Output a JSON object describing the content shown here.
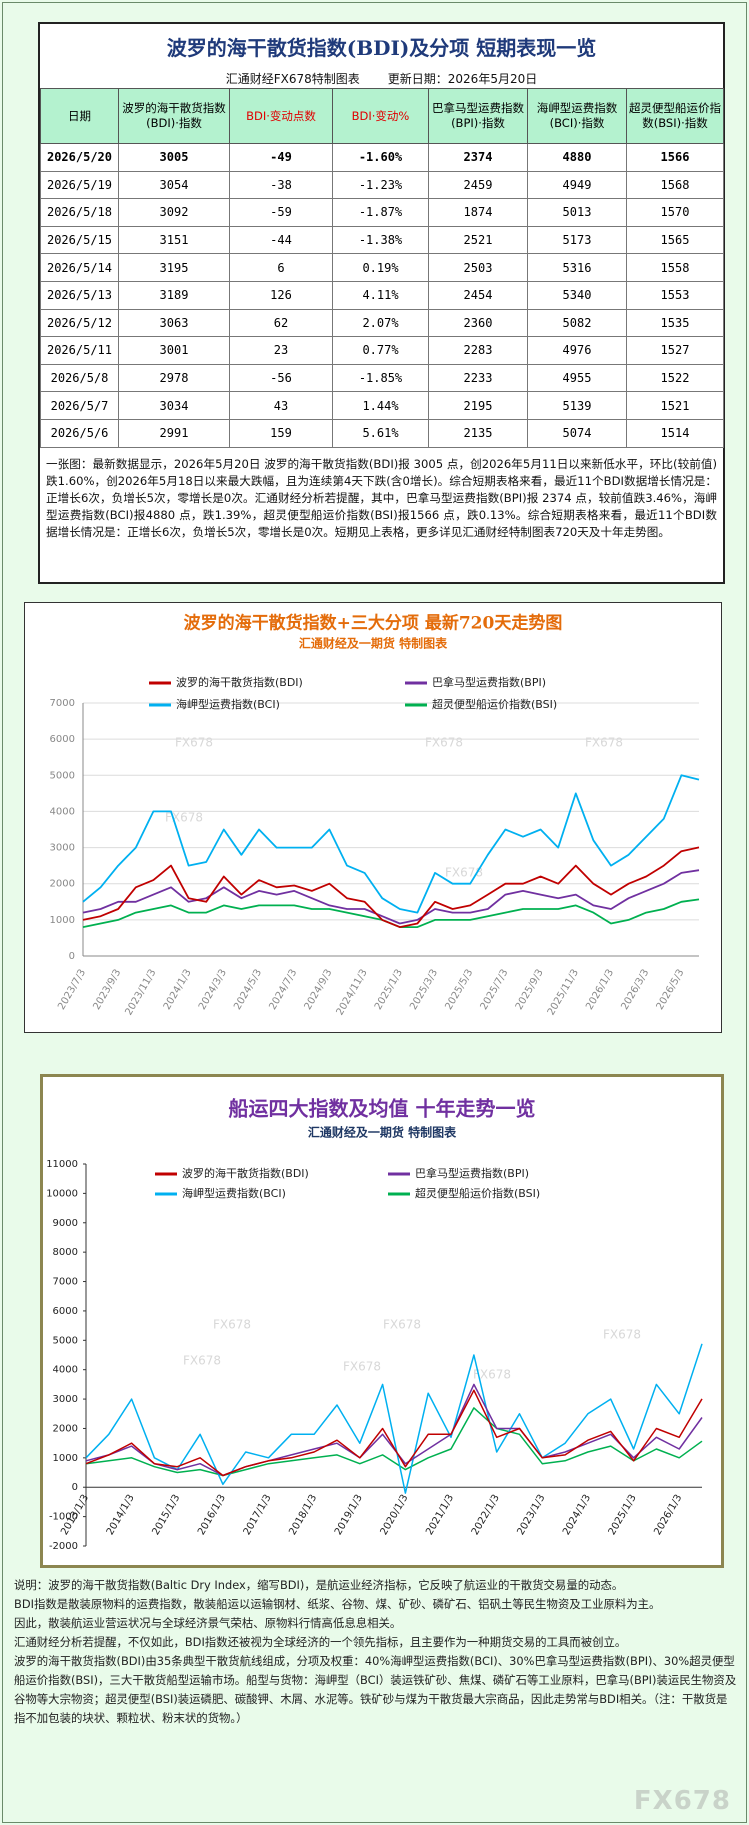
{
  "header": {
    "title": "波罗的海干散货指数(BDI)及分项  短期表现一览",
    "source": "汇通财经FX678特制图表",
    "date": "更新日期：2026年5月20日"
  },
  "table": {
    "columns": [
      "日期",
      "波罗的海干散货指数(BDI)·指数",
      "BDI·变动点数",
      "BDI·变动%",
      "巴拿马型运费指数(BPI)·指数",
      "海岬型运费指数(BCI)·指数",
      "超灵便型船运价指数(BSI)·指数"
    ],
    "rows": [
      [
        "2026/5/20",
        3005,
        -49,
        "-1.60%",
        2374,
        4880,
        1566
      ],
      [
        "2026/5/19",
        3054,
        -38,
        "-1.23%",
        2459,
        4949,
        1568
      ],
      [
        "2026/5/18",
        3092,
        -59,
        "-1.87%",
        1874,
        5013,
        1570
      ],
      [
        "2026/5/15",
        3151,
        -44,
        "-1.38%",
        2521,
        5173,
        1565
      ],
      [
        "2026/5/14",
        3195,
        6,
        "0.19%",
        2503,
        5316,
        1558
      ],
      [
        "2026/5/13",
        3189,
        126,
        "4.11%",
        2454,
        5340,
        1553
      ],
      [
        "2026/5/12",
        3063,
        62,
        "2.07%",
        2360,
        5082,
        1535
      ],
      [
        "2026/5/11",
        3001,
        23,
        "0.77%",
        2283,
        4976,
        1527
      ],
      [
        "2026/5/8",
        2978,
        -56,
        "-1.85%",
        2233,
        4955,
        1522
      ],
      [
        "2026/5/7",
        3034,
        43,
        "1.44%",
        2195,
        5139,
        1521
      ],
      [
        "2026/5/6",
        2991,
        159,
        "5.61%",
        2135,
        5074,
        1514
      ]
    ]
  },
  "summary": "一张图：最新数据显示，2026年5月20日 波罗的海干散货指数(BDI)报 3005 点，创2026年5月11日以来新低水平，环比(较前值)跌1.60%，创2026年5月18日以来最大跌幅，且为连续第4天下跌(含0增长)。综合短期表格来看，最近11个BDI数据增长情况是：正增长6次，负增长5次，零增长是0次。汇通财经分析若提醒，其中，巴拿马型运费指数(BPI)报 2374 点，较前值跌3.46%，海岬型运费指数(BCI)报4880 点，跌1.39%，超灵便型船运价指数(BSI)报1566 点，跌0.13%。综合短期表格来看，最近11个BDI数据增长情况是：正增长6次，负增长5次，零增长是0次。短期见上表格，更多详见汇通财经特制图表720天及十年走势图。",
  "chart_data": [
    {
      "type": "line",
      "title": "波罗的海干散货指数+三大分项  最新720天走势图",
      "subtitle": "汇通财经及一期货 特制图表",
      "categories": [
        "2023/7/3",
        null,
        "2023/9/3",
        null,
        "2023/11/3",
        null,
        "2024/1/3",
        null,
        "2024/3/3",
        null,
        "2024/5/3",
        null,
        "2024/7/3",
        null,
        "2024/9/3",
        null,
        "2024/11/3",
        null,
        "2025/1/3",
        null,
        "2025/3/3",
        null,
        "2025/5/3",
        null,
        "2025/7/3",
        null,
        "2025/9/3",
        null,
        "2025/11/3",
        null,
        "2026/1/3",
        null,
        "2026/3/3",
        null,
        "2026/5/3",
        null
      ],
      "series": [
        {
          "name": "波罗的海干散货指数(BDI)",
          "color": "#c00000",
          "values": [
            1000,
            1100,
            1300,
            1900,
            2100,
            2500,
            1600,
            1500,
            2200,
            1700,
            2100,
            1900,
            1950,
            1800,
            2000,
            1600,
            1500,
            1000,
            800,
            900,
            1500,
            1300,
            1400,
            1700,
            2000,
            2000,
            2200,
            2000,
            2500,
            2000,
            1700,
            2000,
            2200,
            2500,
            2900,
            3005
          ]
        },
        {
          "name": "巴拿马型运费指数(BPI)",
          "color": "#7030a0",
          "values": [
            1200,
            1300,
            1500,
            1500,
            1700,
            1900,
            1500,
            1600,
            1900,
            1600,
            1800,
            1700,
            1800,
            1600,
            1400,
            1300,
            1300,
            1100,
            900,
            1000,
            1300,
            1200,
            1200,
            1300,
            1700,
            1800,
            1700,
            1600,
            1700,
            1400,
            1300,
            1600,
            1800,
            2000,
            2300,
            2374
          ]
        },
        {
          "name": "海岬型运费指数(BCI)",
          "color": "#00b0f0",
          "values": [
            1500,
            1900,
            2500,
            3000,
            4000,
            4000,
            2500,
            2600,
            3500,
            2800,
            3500,
            3000,
            3000,
            3000,
            3500,
            2500,
            2300,
            1600,
            1300,
            1200,
            2300,
            2000,
            2000,
            2800,
            3500,
            3300,
            3500,
            3000,
            4500,
            3200,
            2500,
            2800,
            3300,
            3800,
            5000,
            4880
          ]
        },
        {
          "name": "超灵便型船运价指数(BSI)",
          "color": "#00b050",
          "values": [
            800,
            900,
            1000,
            1200,
            1300,
            1400,
            1200,
            1200,
            1400,
            1300,
            1400,
            1400,
            1400,
            1300,
            1300,
            1200,
            1100,
            1000,
            800,
            800,
            1000,
            1000,
            1000,
            1100,
            1200,
            1300,
            1300,
            1300,
            1400,
            1200,
            900,
            1000,
            1200,
            1300,
            1500,
            1566
          ]
        }
      ],
      "ylim": [
        0,
        7000
      ],
      "yticks": [
        0,
        1000,
        2000,
        3000,
        4000,
        5000,
        6000,
        7000
      ],
      "grid": true,
      "legend": "top",
      "watermark": "FX678"
    },
    {
      "type": "line",
      "title": "船运四大指数及均值 十年走势一览",
      "subtitle": "汇通财经及一期货 特制图表",
      "categories": [
        "2013/1/3",
        null,
        "2014/1/3",
        null,
        "2015/1/3",
        null,
        "2016/1/3",
        null,
        "2017/1/3",
        null,
        "2018/1/3",
        null,
        "2019/1/3",
        null,
        "2020/1/3",
        null,
        "2021/1/3",
        null,
        "2022/1/3",
        null,
        "2023/1/3",
        null,
        "2024/1/3",
        null,
        "2025/1/3",
        null,
        "2026/1/3",
        null
      ],
      "series": [
        {
          "name": "波罗的海干散货指数(BDI)",
          "color": "#c00000",
          "values": [
            800,
            1100,
            1500,
            800,
            700,
            1000,
            400,
            700,
            900,
            1000,
            1200,
            1600,
            1000,
            2000,
            700,
            1800,
            1800,
            3300,
            1700,
            2000,
            1000,
            1100,
            1600,
            1900,
            900,
            2000,
            1700,
            3005
          ]
        },
        {
          "name": "巴拿马型运费指数(BPI)",
          "color": "#7030a0",
          "values": [
            900,
            1100,
            1400,
            800,
            600,
            800,
            400,
            700,
            900,
            1100,
            1300,
            1500,
            1000,
            1800,
            800,
            1300,
            1800,
            3500,
            2000,
            2000,
            1000,
            1200,
            1500,
            1800,
            1000,
            1700,
            1300,
            2374
          ]
        },
        {
          "name": "海岬型运费指数(BCI)",
          "color": "#00b0f0",
          "values": [
            1000,
            1800,
            3000,
            1000,
            600,
            1800,
            100,
            1200,
            1000,
            1800,
            1800,
            2800,
            1500,
            3500,
            -200,
            3200,
            1700,
            4500,
            1200,
            2500,
            1000,
            1500,
            2500,
            3000,
            1300,
            3500,
            2500,
            4880
          ]
        },
        {
          "name": "超灵便型船运价指数(BSI)",
          "color": "#00b050",
          "values": [
            800,
            900,
            1000,
            700,
            500,
            600,
            400,
            600,
            800,
            900,
            1000,
            1100,
            800,
            1100,
            600,
            1000,
            1300,
            2700,
            2000,
            1800,
            800,
            900,
            1200,
            1400,
            900,
            1300,
            1000,
            1566
          ]
        }
      ],
      "ylim": [
        -2000,
        11000
      ],
      "yticks": [
        -2000,
        -1000,
        0,
        1000,
        2000,
        3000,
        4000,
        5000,
        6000,
        7000,
        8000,
        9000,
        10000,
        11000
      ],
      "grid": false,
      "legend": "top",
      "watermark": "FX678"
    }
  ],
  "notes": [
    "说明：波罗的海干散货指数(Baltic Dry Index，缩写BDI)，是航运业经济指标，它反映了航运业的干散货交易量的动态。",
    "BDI指数是散装原物料的运费指数，散装船运以运输钢材、纸浆、谷物、煤、矿砂、磷矿石、铝矾土等民生物资及工业原料为主。",
    "因此，散装航运业营运状况与全球经济景气荣枯、原物料行情高低息息相关。",
    "汇通财经分析若提醒，不仅如此，BDI指数还被视为全球经济的一个领先指标，且主要作为一种期货交易的工具而被创立。",
    "波罗的海干散货指数(BDI)由35条典型干散货航线组成，分项及权重：40%海岬型运费指数(BCI)、30%巴拿马型运费指数(BPI)、30%超灵便型船运价指数(BSI)，三大干散货船型运输市场。船型与货物：海岬型（BCI）装运铁矿砂、焦煤、磷矿石等工业原料，巴拿马(BPI)装运民生物资及谷物等大宗物资；超灵便型(BSI)装运磷肥、碳酸钾、木屑、水泥等。铁矿砂与煤为干散货最大宗商品，因此走势常与BDI相关。（注：干散货是指不加包装的块状、颗粒状、粉末状的货物。）"
  ],
  "logo": "FX678"
}
